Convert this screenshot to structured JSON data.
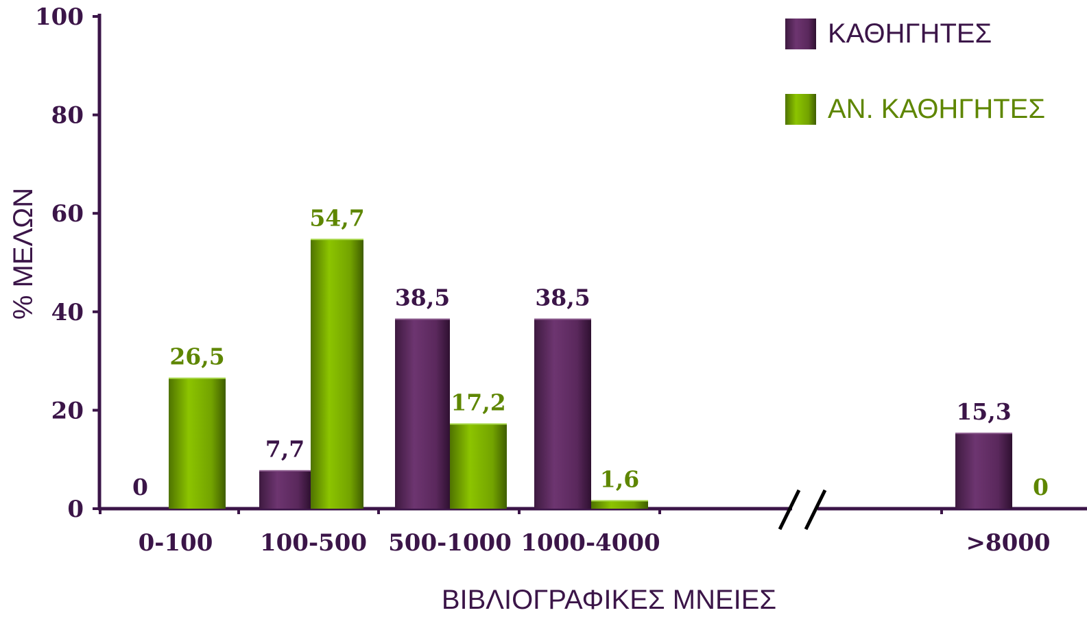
{
  "chart_data": {
    "type": "bar",
    "categories": [
      "0-100",
      "100-500",
      "500-1000",
      "1000-4000",
      ">8000"
    ],
    "series": [
      {
        "name": "ΚΑΘΗΓΗΤΕΣ",
        "color": "#5e2a5f",
        "values": [
          0,
          7.7,
          38.5,
          38.5,
          15.3
        ],
        "labels": [
          "0",
          "7,7",
          "38,5",
          "38,5",
          "15,3"
        ]
      },
      {
        "name": "ΑΝ. ΚΑΘΗΓΗΤΕΣ",
        "color": "#76a600",
        "values": [
          26.5,
          54.7,
          17.2,
          1.6,
          0
        ],
        "labels": [
          "26,5",
          "54,7",
          "17,2",
          "1,6",
          "0"
        ]
      }
    ],
    "xlabel": "ΒΙΒΛΙΟΓΡΑΦΙΚΕΣ ΜΝΕΙΕΣ",
    "ylabel": "% ΜΕΛΩΝ",
    "ylim": [
      0,
      100
    ],
    "yticks": [
      "0",
      "20",
      "40",
      "60",
      "80",
      "100"
    ],
    "ytick_values": [
      0,
      20,
      40,
      60,
      80,
      100
    ],
    "axis_break": true,
    "legend": "top-right",
    "axis_color": "#3b1548",
    "label_colors": [
      "#3b1548",
      "#5e8600"
    ]
  }
}
